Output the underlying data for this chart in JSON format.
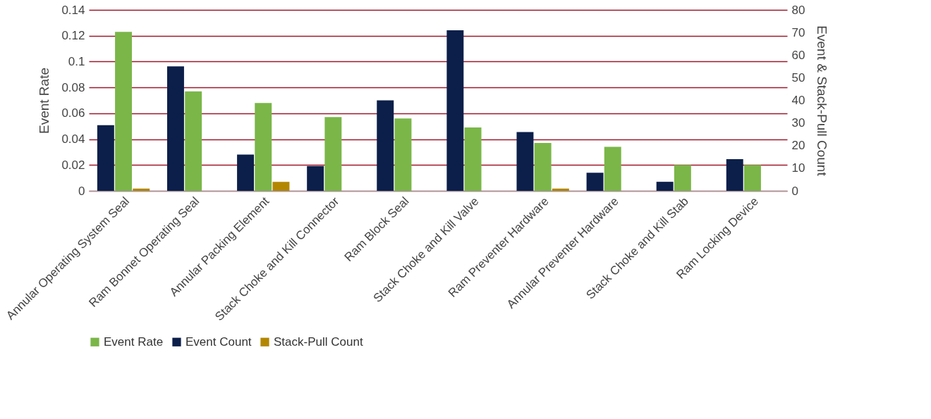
{
  "chart_data": {
    "type": "bar",
    "categories": [
      "Annular Operating System Seal",
      "Ram Bonnet Operating Seal",
      "Annular Packing Element",
      "Stack Choke and Kill Connector",
      "Ram Block Seal",
      "Stack Choke and Kill Valve",
      "Ram Preventer Hardware",
      "Annular Preventer Hardware",
      "Stack Choke and Kill Stab",
      "Ram Locking Device"
    ],
    "series": [
      {
        "name": "Event Count",
        "color": "#0c1f4a",
        "axis": "y2",
        "values": [
          29,
          55,
          16,
          11,
          40,
          71,
          26,
          8,
          4,
          14
        ]
      },
      {
        "name": "Event Rate",
        "color": "#7ab648",
        "values": [
          0.123,
          0.077,
          0.068,
          0.057,
          0.056,
          0.049,
          0.037,
          0.034,
          0.02,
          0.02
        ]
      },
      {
        "name": "Stack-Pull Count",
        "color": "#b38600",
        "axis": "y2",
        "values": [
          1,
          null,
          4,
          null,
          null,
          null,
          1,
          null,
          null,
          null
        ]
      }
    ],
    "ylabel": "Event Rate",
    "y2label": "Event & Stack-Pull Count",
    "ylim": [
      0,
      0.14
    ],
    "yticks": [
      0,
      0.02,
      0.04,
      0.06,
      0.08,
      0.1,
      0.12,
      0.14
    ],
    "y2lim": [
      0,
      80
    ],
    "y2ticks": [
      0,
      10,
      20,
      30,
      40,
      50,
      60,
      70,
      80
    ],
    "grid": "y",
    "legend": "bottom"
  }
}
